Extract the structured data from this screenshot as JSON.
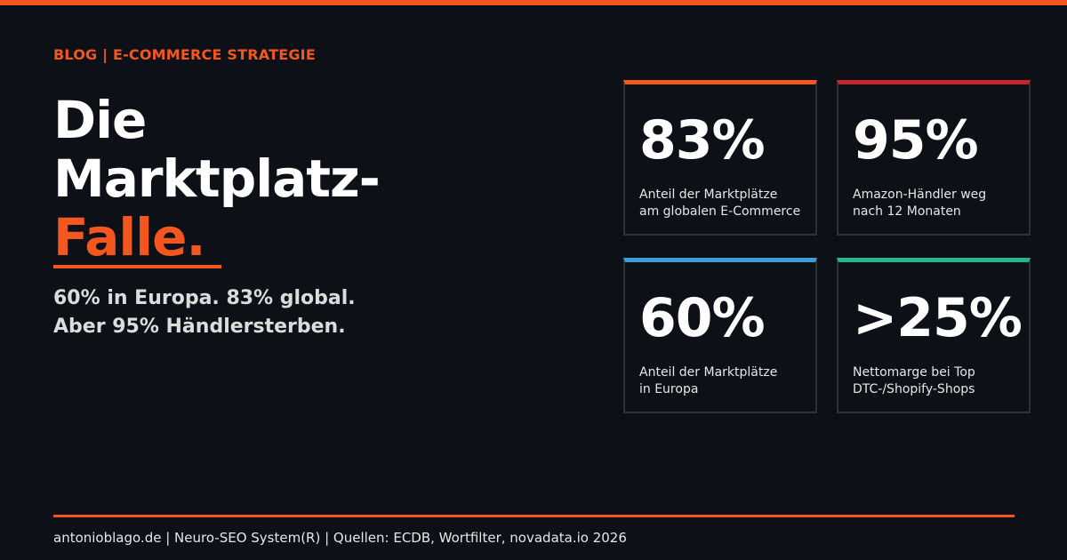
{
  "colors": {
    "background": "#0d1117",
    "accent_orange": "#f4561f",
    "card_red": "#c0282d",
    "card_blue": "#3aa0d8",
    "card_green": "#1fb98a",
    "card_border": "#2e3237"
  },
  "header": {
    "kicker": "BLOG | E-COMMERCE STRATEGIE",
    "headline": {
      "line1": "Die",
      "line2": "Marktplatz-",
      "line3": "Falle."
    },
    "subline": {
      "line1": "60% in Europa. 83% global.",
      "line2": "Aber 95% Händlersterben."
    }
  },
  "stats": [
    {
      "value": "83%",
      "label_line1": "Anteil der Marktplätze",
      "label_line2": "am globalen E-Commerce",
      "accent": "#f4561f"
    },
    {
      "value": "95%",
      "label_line1": "Amazon-Händler weg",
      "label_line2": "nach 12 Monaten",
      "accent": "#c0282d"
    },
    {
      "value": "60%",
      "label_line1": "Anteil der Marktplätze",
      "label_line2": "in Europa",
      "accent": "#3aa0d8"
    },
    {
      "value": ">25%",
      "label_line1": "Nettomarge bei Top",
      "label_line2": "DTC-/Shopify-Shops",
      "accent": "#1fb98a"
    }
  ],
  "footer": {
    "text": "antonioblago.de  |  Neuro-SEO System(R)  |  Quellen: ECDB, Wortfilter, novadata.io 2026"
  }
}
